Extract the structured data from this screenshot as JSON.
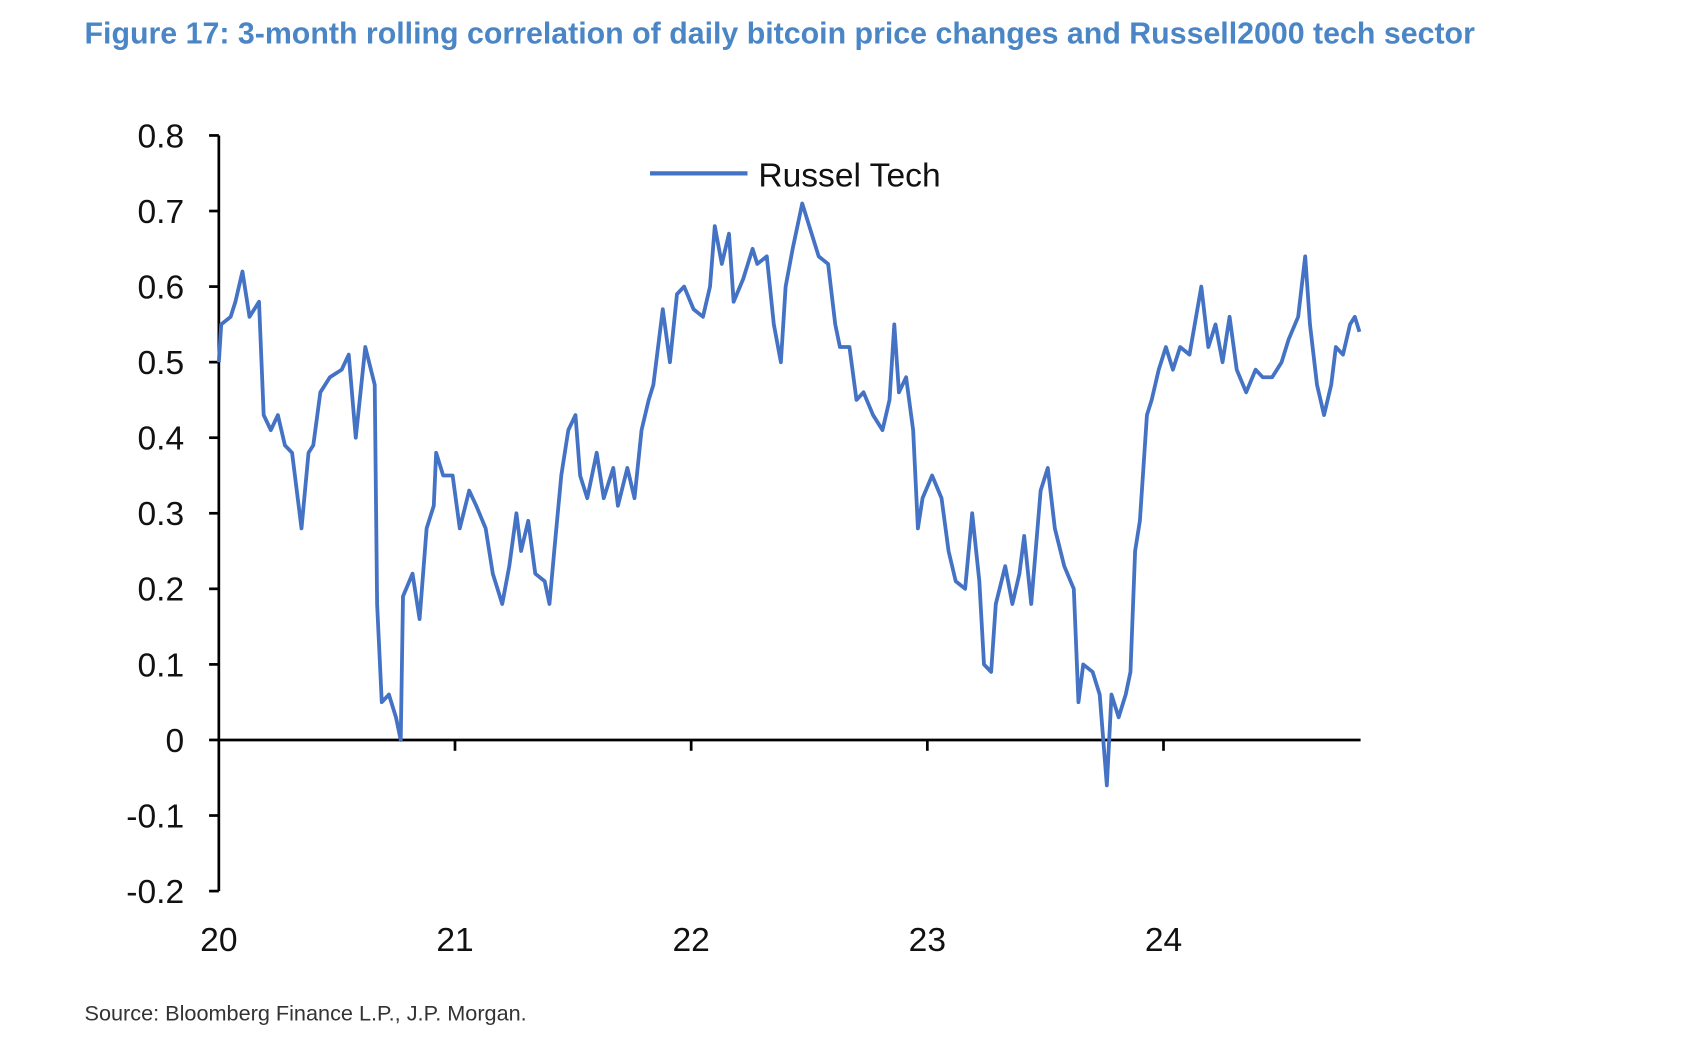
{
  "chart_data": {
    "type": "line",
    "title": "Figure 17: 3-month rolling correlation of daily bitcoin price changes and Russell2000 tech sector",
    "source": "Source: Bloomberg Finance L.P., J.P. Morgan.",
    "xlabel": "",
    "ylabel": "",
    "xlim": [
      2020,
      2024.83
    ],
    "ylim": [
      -0.2,
      0.8
    ],
    "x_ticks": [
      2020,
      2021,
      2022,
      2023,
      2024
    ],
    "x_tick_labels": [
      "20",
      "21",
      "22",
      "23",
      "24"
    ],
    "y_ticks": [
      0.8,
      0.7,
      0.6,
      0.5,
      0.4,
      0.3,
      0.2,
      0.1,
      0,
      -0.1,
      -0.2
    ],
    "y_tick_labels": [
      "0.8",
      "0.7",
      "0.6",
      "0.5",
      "0.4",
      "0.3",
      "0.2",
      "0.1",
      "0",
      "-0.1",
      "-0.2"
    ],
    "grid": false,
    "legend_position": "top-center",
    "series": [
      {
        "name": "Russel Tech",
        "color": "#4472c4",
        "x": [
          2020.0,
          2020.01,
          2020.05,
          2020.07,
          2020.1,
          2020.13,
          2020.17,
          2020.19,
          2020.22,
          2020.25,
          2020.28,
          2020.31,
          2020.35,
          2020.38,
          2020.4,
          2020.43,
          2020.47,
          2020.52,
          2020.55,
          2020.58,
          2020.62,
          2020.66,
          2020.67,
          2020.69,
          2020.72,
          2020.75,
          2020.77,
          2020.78,
          2020.82,
          2020.85,
          2020.88,
          2020.91,
          2020.92,
          2020.95,
          2020.99,
          2021.02,
          2021.06,
          2021.09,
          2021.13,
          2021.16,
          2021.2,
          2021.23,
          2021.26,
          2021.28,
          2021.31,
          2021.34,
          2021.38,
          2021.4,
          2021.42,
          2021.45,
          2021.48,
          2021.51,
          2021.53,
          2021.56,
          2021.6,
          2021.63,
          2021.67,
          2021.69,
          2021.73,
          2021.76,
          2021.79,
          2021.82,
          2021.84,
          2021.88,
          2021.91,
          2021.94,
          2021.97,
          2022.01,
          2022.05,
          2022.08,
          2022.1,
          2022.13,
          2022.16,
          2022.18,
          2022.22,
          2022.26,
          2022.28,
          2022.32,
          2022.35,
          2022.38,
          2022.4,
          2022.43,
          2022.47,
          2022.51,
          2022.54,
          2022.58,
          2022.61,
          2022.63,
          2022.67,
          2022.7,
          2022.73,
          2022.77,
          2022.81,
          2022.84,
          2022.86,
          2022.88,
          2022.91,
          2022.94,
          2022.96,
          2022.98,
          2023.02,
          2023.06,
          2023.09,
          2023.12,
          2023.16,
          2023.19,
          2023.22,
          2023.24,
          2023.27,
          2023.29,
          2023.33,
          2023.36,
          2023.39,
          2023.41,
          2023.44,
          2023.48,
          2023.51,
          2023.54,
          2023.58,
          2023.62,
          2023.64,
          2023.66,
          2023.7,
          2023.73,
          2023.76,
          2023.78,
          2023.81,
          2023.84,
          2023.86,
          2023.88,
          2023.9,
          2023.93,
          2023.95,
          2023.98,
          2024.01,
          2024.04,
          2024.07,
          2024.11,
          2024.16,
          2024.19,
          2024.22,
          2024.25,
          2024.28,
          2024.31,
          2024.35,
          2024.39,
          2024.42,
          2024.46,
          2024.5,
          2024.53,
          2024.57,
          2024.6,
          2024.62,
          2024.65,
          2024.68,
          2024.71,
          2024.73,
          2024.76,
          2024.79,
          2024.81,
          2024.83
        ],
        "y": [
          0.5,
          0.55,
          0.56,
          0.58,
          0.62,
          0.56,
          0.58,
          0.43,
          0.41,
          0.43,
          0.39,
          0.38,
          0.28,
          0.38,
          0.39,
          0.46,
          0.48,
          0.49,
          0.51,
          0.4,
          0.52,
          0.47,
          0.18,
          0.05,
          0.06,
          0.03,
          0.0,
          0.19,
          0.22,
          0.16,
          0.28,
          0.31,
          0.38,
          0.35,
          0.35,
          0.28,
          0.33,
          0.31,
          0.28,
          0.22,
          0.18,
          0.23,
          0.3,
          0.25,
          0.29,
          0.22,
          0.21,
          0.18,
          0.25,
          0.35,
          0.41,
          0.43,
          0.35,
          0.32,
          0.38,
          0.32,
          0.36,
          0.31,
          0.36,
          0.32,
          0.41,
          0.45,
          0.47,
          0.57,
          0.5,
          0.59,
          0.6,
          0.57,
          0.56,
          0.6,
          0.68,
          0.63,
          0.67,
          0.58,
          0.61,
          0.65,
          0.63,
          0.64,
          0.55,
          0.5,
          0.6,
          0.65,
          0.71,
          0.67,
          0.64,
          0.63,
          0.55,
          0.52,
          0.52,
          0.45,
          0.46,
          0.43,
          0.41,
          0.45,
          0.55,
          0.46,
          0.48,
          0.41,
          0.28,
          0.32,
          0.35,
          0.32,
          0.25,
          0.21,
          0.2,
          0.3,
          0.21,
          0.1,
          0.09,
          0.18,
          0.23,
          0.18,
          0.22,
          0.27,
          0.18,
          0.33,
          0.36,
          0.28,
          0.23,
          0.2,
          0.05,
          0.1,
          0.09,
          0.06,
          -0.06,
          0.06,
          0.03,
          0.06,
          0.09,
          0.25,
          0.29,
          0.43,
          0.45,
          0.49,
          0.52,
          0.49,
          0.52,
          0.51,
          0.6,
          0.52,
          0.55,
          0.5,
          0.56,
          0.49,
          0.46,
          0.49,
          0.48,
          0.48,
          0.5,
          0.53,
          0.56,
          0.64,
          0.55,
          0.47,
          0.43,
          0.47,
          0.52,
          0.51,
          0.55,
          0.56,
          0.54
        ]
      }
    ]
  }
}
